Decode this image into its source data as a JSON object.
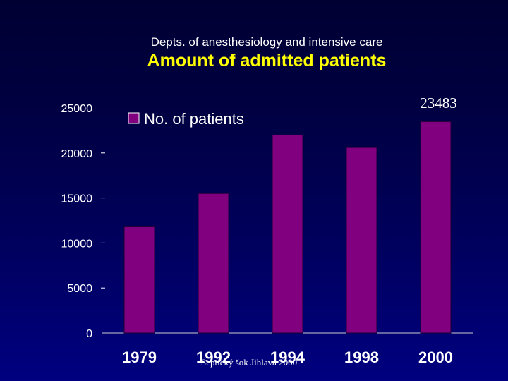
{
  "slide": {
    "subtitle": "Depts. of anesthesiology and intensive care",
    "title": "Amount of admitted patients",
    "footer": "Septický šok Jihlava 2000"
  },
  "colors": {
    "bar_fill": "#800080",
    "bar_edge": "#1a0033",
    "title": "#ffff00",
    "text": "#ffffff",
    "background_top": "#000033",
    "background_bottom": "#000080"
  },
  "chart_data": {
    "type": "bar",
    "title": "",
    "xlabel": "",
    "ylabel": "",
    "categories": [
      "1979",
      "1992",
      "1994",
      "1998",
      "2000"
    ],
    "series": [
      {
        "name": "No. of patients",
        "values": [
          11800,
          15500,
          22000,
          20600,
          23483
        ]
      }
    ],
    "ylim": [
      0,
      25000
    ],
    "yticks": [
      "0",
      "5000",
      "10000",
      "15000",
      "20000",
      "25000"
    ],
    "annotation": "23483",
    "legend": "top-left inside plot",
    "grid": false
  }
}
